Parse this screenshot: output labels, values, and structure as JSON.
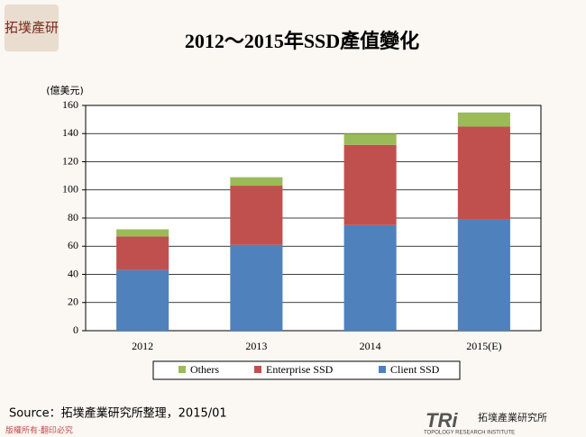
{
  "corner_logo": "拓墣產研",
  "chart_data": {
    "type": "stacked_bar",
    "title": "2012～2015年SSD產值變化",
    "y_unit": "(億美元)",
    "categories": [
      "2012",
      "2013",
      "2014",
      "2015(E)"
    ],
    "series": [
      {
        "name": "Client SSD",
        "color": "#4f81bd",
        "values": [
          43,
          61,
          75,
          79
        ]
      },
      {
        "name": "Enterprise SSD",
        "color": "#c0504d",
        "values": [
          24,
          42,
          57,
          66
        ]
      },
      {
        "name": "Others",
        "color": "#9bbb59",
        "values": [
          5,
          6,
          8,
          10
        ]
      }
    ],
    "ylim": [
      0,
      160
    ],
    "yticks": [
      0,
      20,
      40,
      60,
      80,
      100,
      120,
      140,
      160
    ],
    "grid": true,
    "legend": "bottom"
  },
  "source": "Source：拓墣產業研究所整理，2015/01",
  "footer": "版權所有‧翻印必究",
  "brand": {
    "mark": "TRi",
    "name": "拓墣產業研究所",
    "english": "TOPOLOGY RESEARCH INSTITUTE"
  }
}
